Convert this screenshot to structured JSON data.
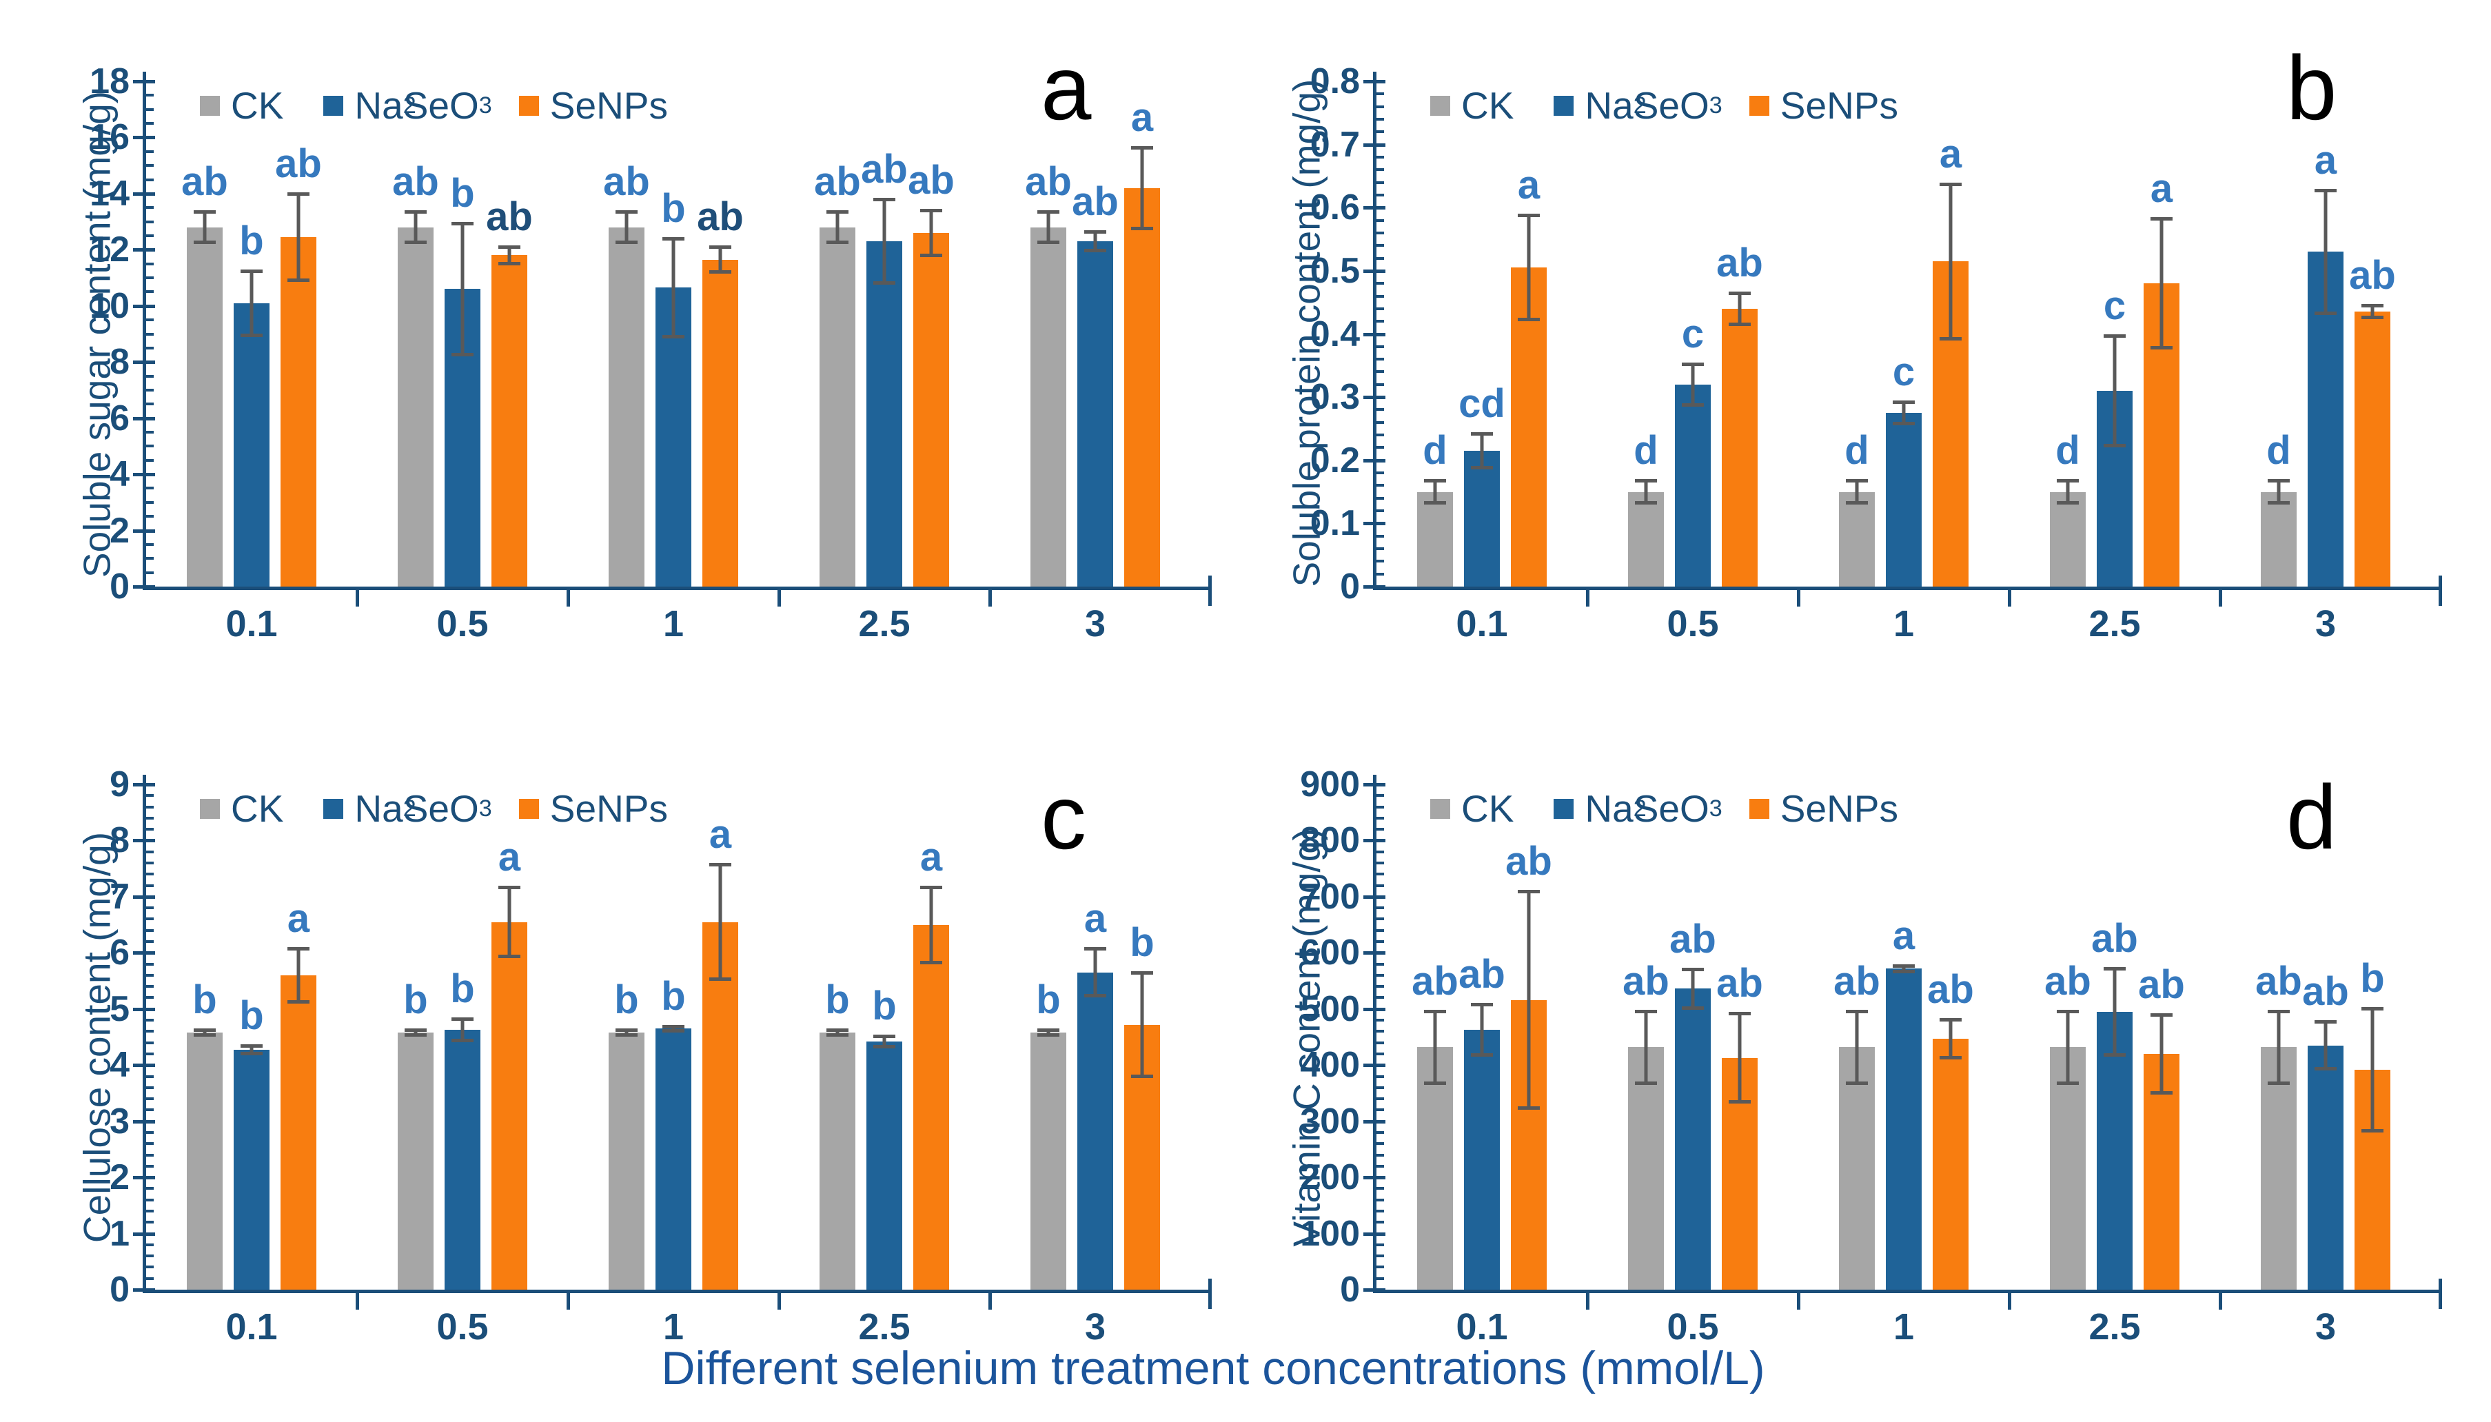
{
  "xlabel": "Different selenium treatment concentrations (mmol/L)",
  "colors": {
    "ck_bar": "#A6A6A6",
    "na2seo3_bar": "#1F6398",
    "senps_bar": "#F87D10",
    "axis_and_text": "#1B4E79",
    "sig_letter_blue": "#3679BE",
    "sig_letter_dark": "#1F4E79",
    "error_bar": "#595959",
    "panel_letter": "#000000"
  },
  "chart_data": [
    {
      "type": "bar",
      "panel_letter": "a",
      "ylabel": "Soluble sugar content (mg/g)",
      "ylim": [
        0,
        18
      ],
      "ytick_labels": [
        "0",
        "2",
        "4",
        "6",
        "8",
        "10",
        "12",
        "14",
        "16",
        "18"
      ],
      "minor_per_major": 4,
      "grid": false,
      "legend_position": "top-left-inside",
      "categories": [
        "0.1",
        "0.5",
        "1",
        "2.5",
        "3"
      ],
      "series": [
        {
          "name": "CK",
          "subscript_digits": false,
          "color": "#A6A6A6",
          "values": [
            12.8,
            12.8,
            12.8,
            12.8,
            12.8
          ],
          "errors": [
            0.6,
            0.6,
            0.6,
            0.6,
            0.6
          ],
          "letters": [
            "ab",
            "ab",
            "ab",
            "ab",
            "ab"
          ]
        },
        {
          "name": "Na2SeO3",
          "subscript_digits": true,
          "color": "#1F6398",
          "values": [
            10.1,
            10.6,
            10.65,
            12.3,
            12.3
          ],
          "errors": [
            1.2,
            2.4,
            1.8,
            1.55,
            0.4
          ],
          "letters": [
            "b",
            "b",
            "b",
            "ab",
            "ab"
          ]
        },
        {
          "name": "SeNPs",
          "subscript_digits": false,
          "color": "#F87D10",
          "values": [
            12.45,
            11.8,
            11.65,
            12.6,
            14.2
          ],
          "errors": [
            1.6,
            0.35,
            0.5,
            0.85,
            1.5
          ],
          "letters": [
            "ab",
            "ab",
            "ab",
            "ab",
            "a"
          ],
          "letters_dark": [
            false,
            true,
            true,
            false,
            false
          ]
        }
      ]
    },
    {
      "type": "bar",
      "panel_letter": "b",
      "ylabel": "Soluble protein content (mg/g)",
      "ylim": [
        0,
        0.8
      ],
      "ytick_labels": [
        "0",
        "0.1",
        "0.2",
        "0.3",
        "0.4",
        "0.5",
        "0.6",
        "0.7",
        "0.8"
      ],
      "minor_per_major": 5,
      "grid": false,
      "legend_position": "top-left-inside",
      "categories": [
        "0.1",
        "0.5",
        "1",
        "2.5",
        "3"
      ],
      "series": [
        {
          "name": "CK",
          "subscript_digits": false,
          "color": "#A6A6A6",
          "values": [
            0.15,
            0.15,
            0.15,
            0.15,
            0.15
          ],
          "errors": [
            0.02,
            0.02,
            0.02,
            0.02,
            0.02
          ],
          "letters": [
            "d",
            "d",
            "d",
            "d",
            "d"
          ]
        },
        {
          "name": "Na2SeO3",
          "subscript_digits": true,
          "color": "#1F6398",
          "values": [
            0.215,
            0.32,
            0.275,
            0.31,
            0.53
          ],
          "errors": [
            0.03,
            0.035,
            0.02,
            0.09,
            0.1
          ],
          "letters": [
            "cd",
            "c",
            "c",
            "c",
            "a"
          ]
        },
        {
          "name": "SeNPs",
          "subscript_digits": false,
          "color": "#F87D10",
          "values": [
            0.505,
            0.44,
            0.515,
            0.48,
            0.435
          ],
          "errors": [
            0.085,
            0.027,
            0.125,
            0.105,
            0.012
          ],
          "letters": [
            "a",
            "ab",
            "a",
            "a",
            "ab"
          ]
        }
      ]
    },
    {
      "type": "bar",
      "panel_letter": "c",
      "ylabel": "Cellulose content (mg/g)",
      "ylim": [
        0,
        9
      ],
      "ytick_labels": [
        "0",
        "1",
        "2",
        "3",
        "4",
        "5",
        "6",
        "7",
        "8",
        "9"
      ],
      "minor_per_major": 5,
      "grid": false,
      "legend_position": "top-left-inside",
      "categories": [
        "0.1",
        "0.5",
        "1",
        "2.5",
        "3"
      ],
      "series": [
        {
          "name": "CK",
          "subscript_digits": false,
          "color": "#A6A6A6",
          "values": [
            4.58,
            4.58,
            4.58,
            4.58,
            4.58
          ],
          "errors": [
            0.07,
            0.07,
            0.07,
            0.07,
            0.07
          ],
          "letters": [
            "b",
            "b",
            "b",
            "b",
            "b"
          ]
        },
        {
          "name": "Na2SeO3",
          "subscript_digits": true,
          "color": "#1F6398",
          "values": [
            4.27,
            4.63,
            4.65,
            4.42,
            5.65
          ],
          "errors": [
            0.1,
            0.22,
            0.07,
            0.12,
            0.45
          ],
          "letters": [
            "b",
            "b",
            "b",
            "b",
            "a"
          ]
        },
        {
          "name": "SeNPs",
          "subscript_digits": false,
          "color": "#F87D10",
          "values": [
            5.6,
            6.55,
            6.55,
            6.5,
            4.72
          ],
          "errors": [
            0.5,
            0.65,
            1.05,
            0.7,
            0.95
          ],
          "letters": [
            "a",
            "a",
            "a",
            "a",
            "b"
          ]
        }
      ]
    },
    {
      "type": "bar",
      "panel_letter": "d",
      "ylabel": "Vitamin C content (mg/g)",
      "ylim": [
        0,
        900
      ],
      "ytick_labels": [
        "0",
        "100",
        "200",
        "300",
        "400",
        "500",
        "600",
        "700",
        "800",
        "900"
      ],
      "minor_per_major": 5,
      "grid": false,
      "legend_position": "top-left-inside",
      "categories": [
        "0.1",
        "0.5",
        "1",
        "2.5",
        "3"
      ],
      "series": [
        {
          "name": "CK",
          "subscript_digits": false,
          "color": "#A6A6A6",
          "values": [
            432,
            432,
            432,
            432,
            432
          ],
          "errors": [
            67,
            67,
            67,
            67,
            67
          ],
          "letters": [
            "ab",
            "ab",
            "ab",
            "ab",
            "ab"
          ]
        },
        {
          "name": "Na2SeO3",
          "subscript_digits": true,
          "color": "#1F6398",
          "values": [
            463,
            536,
            572,
            495,
            435
          ],
          "errors": [
            48,
            37,
            8,
            80,
            45
          ],
          "letters": [
            "ab",
            "ab",
            "a",
            "ab",
            "ab"
          ]
        },
        {
          "name": "SeNPs",
          "subscript_digits": false,
          "color": "#F87D10",
          "values": [
            516,
            413,
            447,
            420,
            392
          ],
          "errors": [
            196,
            82,
            37,
            72,
            112
          ],
          "letters": [
            "ab",
            "ab",
            "ab",
            "ab",
            "b"
          ]
        }
      ]
    }
  ]
}
